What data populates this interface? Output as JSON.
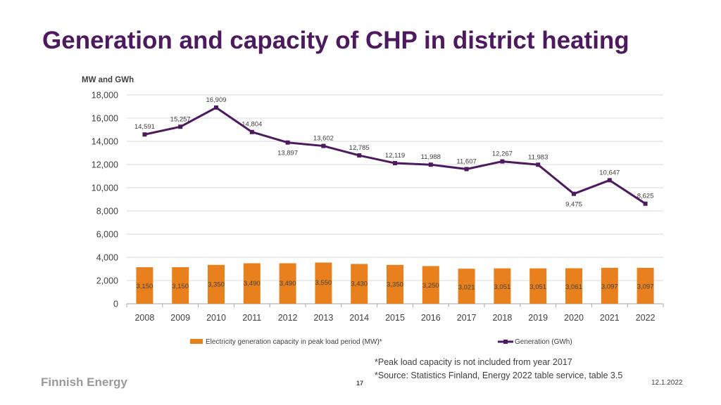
{
  "title": "Generation and capacity of CHP in district heating",
  "chart_data": {
    "type": "bar+line",
    "ylabel": "MW and GWh",
    "ylim": [
      0,
      18000
    ],
    "yticks": [
      "0",
      "2,000",
      "4,000",
      "6,000",
      "8,000",
      "10,000",
      "12,000",
      "14,000",
      "16,000",
      "18,000"
    ],
    "grid": true,
    "legend_position": "bottom",
    "categories": [
      "2008",
      "2009",
      "2010",
      "2011",
      "2012",
      "2013",
      "2014",
      "2015",
      "2016",
      "2017",
      "2018",
      "2019",
      "2020",
      "2021",
      "2022"
    ],
    "series": [
      {
        "name": "Electricity generation capacity in peak load period (MW)*",
        "type": "bar",
        "color": "#e8801e",
        "values": [
          3150,
          3150,
          3350,
          3490,
          3490,
          3550,
          3430,
          3350,
          3250,
          3021,
          3051,
          3051,
          3061,
          3097,
          3097
        ],
        "labels": [
          "3,150",
          "3,150",
          "3,350",
          "3,490",
          "3,490",
          "3,550",
          "3,430",
          "3,350",
          "3,250",
          "3,021",
          "3,051",
          "3,051",
          "3,061",
          "3,097",
          "3,097"
        ]
      },
      {
        "name": "Generation (GWh)",
        "type": "line",
        "color": "#4e1a5f",
        "values": [
          14591,
          15257,
          16909,
          14804,
          13897,
          13602,
          12785,
          12119,
          11988,
          11607,
          12267,
          11983,
          9475,
          10647,
          8625
        ],
        "labels": [
          "14,591",
          "15,257",
          "16,909",
          "14,804",
          "13,897",
          "13,602",
          "12,785",
          "12,119",
          "11,988",
          "11,607",
          "12,267",
          "11,983",
          "9,475",
          "10,647",
          "8,625"
        ]
      }
    ]
  },
  "footnotes": [
    "*Peak load capacity is not included from year 2017",
    "*Source: Statistics Finland, Energy 2022 table service, table 3.5"
  ],
  "footer": {
    "logo": "Finnish Energy",
    "page_number": "17",
    "date": "12.1.2022"
  }
}
